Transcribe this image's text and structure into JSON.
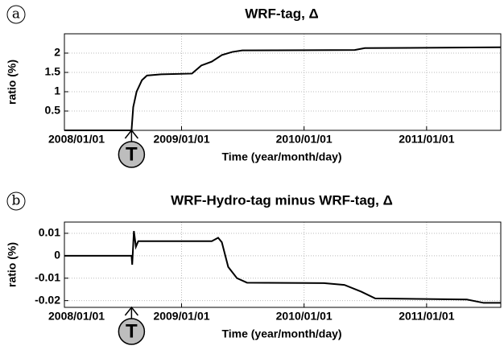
{
  "chart_data": [
    {
      "type": "line",
      "panel_label": "a",
      "title": "WRF-tag, Δ",
      "y_label": "ratio (%)",
      "x_label": "Time (year/month/day)",
      "marker_label": "T",
      "marker_x": "2008/08/05",
      "xlim": [
        "2008/01/18",
        "2011/08/10"
      ],
      "xticks": [
        "2008/01/01",
        "2009/01/01",
        "2010/01/01",
        "2011/01/01"
      ],
      "ylim": [
        0,
        2.5
      ],
      "yticks": [
        0.5,
        1,
        1.5,
        2
      ],
      "grid": true,
      "x": [
        "2008/01/18",
        "2008/08/05",
        "2008/08/10",
        "2008/08/20",
        "2008/09/05",
        "2008/09/20",
        "2008/11/01",
        "2009/02/01",
        "2009/03/01",
        "2009/04/01",
        "2009/05/01",
        "2009/06/01",
        "2009/07/01",
        "2010/06/01",
        "2010/07/01",
        "2011/08/10"
      ],
      "series": [
        {
          "name": "WRF-tag",
          "color": "#000000",
          "values": [
            0,
            0,
            0.6,
            1.0,
            1.3,
            1.42,
            1.45,
            1.47,
            1.68,
            1.78,
            1.95,
            2.03,
            2.07,
            2.08,
            2.13,
            2.15
          ]
        }
      ]
    },
    {
      "type": "line",
      "panel_label": "b",
      "title": "WRF-Hydro-tag minus WRF-tag, Δ",
      "y_label": "ratio (%)",
      "x_label": "Time (year/month/day)",
      "marker_label": "T",
      "marker_x": "2008/08/05",
      "xlim": [
        "2008/01/18",
        "2011/08/10"
      ],
      "xticks": [
        "2008/01/01",
        "2009/01/01",
        "2010/01/01",
        "2011/01/01"
      ],
      "ylim": [
        -0.023,
        0.015
      ],
      "yticks": [
        0.01,
        0,
        -0.01,
        -0.02
      ],
      "grid": true,
      "x": [
        "2008/01/18",
        "2008/08/05",
        "2008/08/07",
        "2008/08/12",
        "2008/08/18",
        "2008/08/25",
        "2009/04/01",
        "2009/04/20",
        "2009/05/01",
        "2009/05/20",
        "2009/06/15",
        "2009/07/15",
        "2010/03/01",
        "2010/05/01",
        "2010/06/20",
        "2010/08/01",
        "2011/05/01",
        "2011/06/20",
        "2011/08/10"
      ],
      "series": [
        {
          "name": "WRF-Hydro-tag minus WRF-tag",
          "color": "#000000",
          "values": [
            0,
            0,
            -0.004,
            0.011,
            0.004,
            0.0065,
            0.0065,
            0.008,
            0.006,
            -0.005,
            -0.01,
            -0.012,
            -0.0122,
            -0.013,
            -0.016,
            -0.019,
            -0.0195,
            -0.021,
            -0.021
          ]
        }
      ]
    }
  ]
}
